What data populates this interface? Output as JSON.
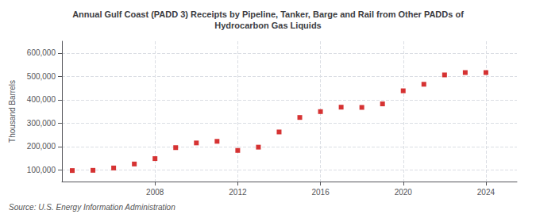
{
  "chart_data": {
    "type": "scatter",
    "title": "Annual Gulf Coast (PADD 3) Receipts by Pipeline, Tanker, Barge and Rail from Other PADDs of\nHydrocarbon Gas Liquids",
    "ylabel": "Thousand Barrels",
    "annotation": "Source: U.S. Energy Information Administration",
    "x": [
      2004,
      2005,
      2006,
      2007,
      2008,
      2009,
      2010,
      2011,
      2012,
      2013,
      2014,
      2015,
      2016,
      2017,
      2018,
      2019,
      2020,
      2021,
      2022,
      2023,
      2024
    ],
    "values": [
      97000,
      98000,
      108000,
      125000,
      148000,
      195000,
      215000,
      222000,
      183000,
      197000,
      262000,
      324000,
      349000,
      368000,
      367000,
      382000,
      438000,
      466000,
      506000,
      516000,
      516000
    ],
    "color": "#cc0000",
    "marker": "square",
    "xlim": [
      2003.5,
      2025.5
    ],
    "xticks": [
      2008,
      2012,
      2016,
      2020,
      2024
    ],
    "ylim": [
      50000,
      650000
    ],
    "yticks": [
      {
        "value": 100000,
        "label": "100,000"
      },
      {
        "value": 200000,
        "label": "200,000"
      },
      {
        "value": 300000,
        "label": "300,000"
      },
      {
        "value": 400000,
        "label": "400,000"
      },
      {
        "value": 500000,
        "label": "500,000"
      },
      {
        "value": 600000,
        "label": "600,000"
      }
    ],
    "grid": true
  }
}
